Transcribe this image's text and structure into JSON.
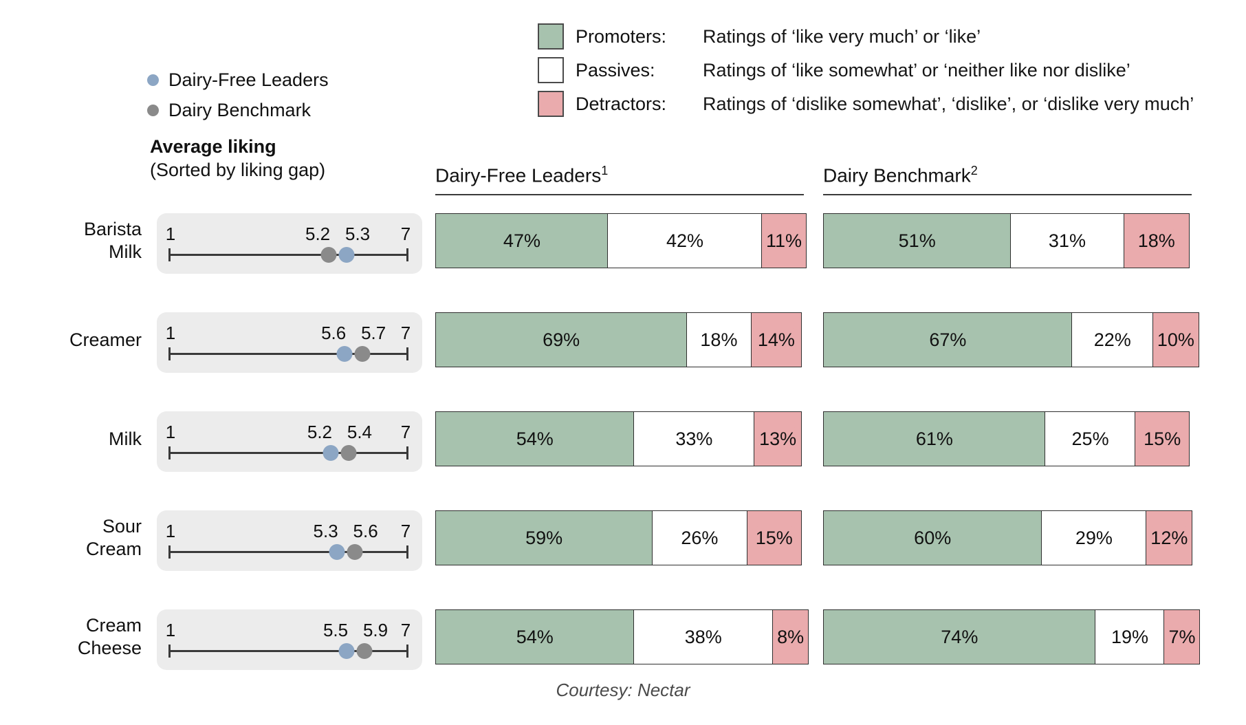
{
  "series_legend": {
    "items": [
      {
        "key": "dairy_free",
        "label": "Dairy-Free Leaders",
        "color": "#8ca6c4"
      },
      {
        "key": "benchmark",
        "label": "Dairy Benchmark",
        "color": "#8a8a8a"
      }
    ]
  },
  "segment_legend": {
    "items": [
      {
        "key": "promoters",
        "label": "Promoters:",
        "description": "Ratings of ‘like very much’ or ‘like’",
        "color": "#a7c2ae"
      },
      {
        "key": "passives",
        "label": "Passives:",
        "description": "Ratings of ‘like somewhat’ or ‘neither like nor dislike’",
        "color": "#ffffff"
      },
      {
        "key": "detractors",
        "label": "Detractors:",
        "description": "Ratings of ‘dislike somewhat’, ‘dislike’, or ‘dislike very much’",
        "color": "#eaabad"
      }
    ]
  },
  "left_axis": {
    "title": "Average liking",
    "subtitle": "(Sorted by liking gap)",
    "scale_min": "1",
    "scale_max": "7"
  },
  "columns": [
    {
      "title": "Dairy-Free Leaders",
      "sup": "1"
    },
    {
      "title": "Dairy Benchmark",
      "sup": "2"
    }
  ],
  "footer": "Courtesy: Nectar",
  "chart_data": {
    "type": "bar",
    "subtype": "100%-stacked-horizontal-with-dot-plot",
    "categories": [
      "Barista Milk",
      "Creamer",
      "Milk",
      "Sour Cream",
      "Cream Cheese"
    ],
    "liking_scale": [
      1,
      7
    ],
    "segment_keys": [
      "promoters",
      "passives",
      "detractors"
    ],
    "rows": [
      {
        "category": "Barista Milk",
        "label_lines": [
          "Barista",
          "Milk"
        ],
        "dairy_free_avg": 5.3,
        "benchmark_avg": 5.2,
        "dairy_free": {
          "promoters": 47,
          "passives": 42,
          "detractors": 11
        },
        "dairy_benchmark": {
          "promoters": 51,
          "passives": 31,
          "detractors": 18
        }
      },
      {
        "category": "Creamer",
        "label_lines": [
          "Creamer"
        ],
        "dairy_free_avg": 5.6,
        "benchmark_avg": 5.7,
        "dairy_free": {
          "promoters": 69,
          "passives": 18,
          "detractors": 14
        },
        "dairy_benchmark": {
          "promoters": 67,
          "passives": 22,
          "detractors": 10
        }
      },
      {
        "category": "Milk",
        "label_lines": [
          "Milk"
        ],
        "dairy_free_avg": 5.2,
        "benchmark_avg": 5.4,
        "dairy_free": {
          "promoters": 54,
          "passives": 33,
          "detractors": 13
        },
        "dairy_benchmark": {
          "promoters": 61,
          "passives": 25,
          "detractors": 15
        }
      },
      {
        "category": "Sour Cream",
        "label_lines": [
          "Sour",
          "Cream"
        ],
        "dairy_free_avg": 5.3,
        "benchmark_avg": 5.6,
        "dairy_free": {
          "promoters": 59,
          "passives": 26,
          "detractors": 15
        },
        "dairy_benchmark": {
          "promoters": 60,
          "passives": 29,
          "detractors": 12
        }
      },
      {
        "category": "Cream Cheese",
        "label_lines": [
          "Cream",
          "Cheese"
        ],
        "dairy_free_avg": 5.5,
        "benchmark_avg": 5.9,
        "dairy_free": {
          "promoters": 54,
          "passives": 38,
          "detractors": 8
        },
        "dairy_benchmark": {
          "promoters": 74,
          "passives": 19,
          "detractors": 7
        }
      }
    ]
  }
}
